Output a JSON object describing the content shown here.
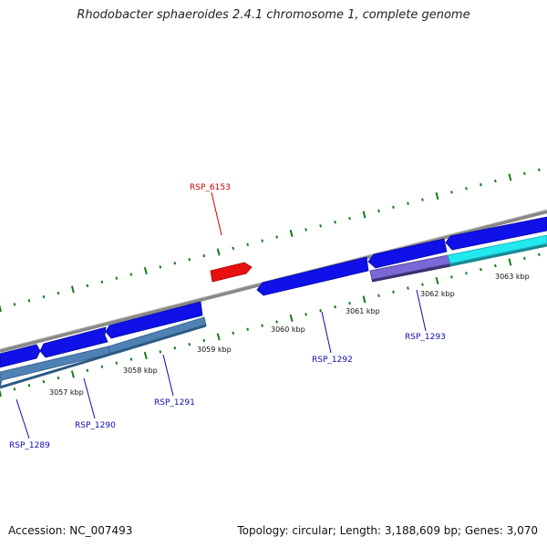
{
  "title": "Rhodobacter sphaeroides 2.4.1 chromosome 1, complete genome",
  "footer": {
    "accession": "Accession: NC_007493",
    "topology": "Topology: circular; Length: 3,188,609 bp; Genes: 3,070"
  },
  "colors": {
    "backbone": "#888888",
    "forward_gene": "#1010e8",
    "reverse_gene": "#4f82b4",
    "gene_purple": "#7b68d6",
    "gene_cyan": "#22e8f0",
    "rna_gene": "#e81010",
    "tick": "#1a7a1a",
    "label_blue": "#0b0bb0",
    "label_red": "#cc0000"
  },
  "ticks": [
    {
      "label": "3057 kbp"
    },
    {
      "label": "3058 kbp"
    },
    {
      "label": "3059 kbp"
    },
    {
      "label": "3060 kbp"
    },
    {
      "label": "3061 kbp"
    },
    {
      "label": "3062 kbp"
    },
    {
      "label": "3063 kbp"
    }
  ],
  "genes": [
    {
      "label": "RSP_1289"
    },
    {
      "label": "RSP_1290"
    },
    {
      "label": "RSP_1291"
    },
    {
      "label": "RSP_1292"
    },
    {
      "label": "RSP_1293"
    },
    {
      "label": "RSP_6153"
    }
  ]
}
